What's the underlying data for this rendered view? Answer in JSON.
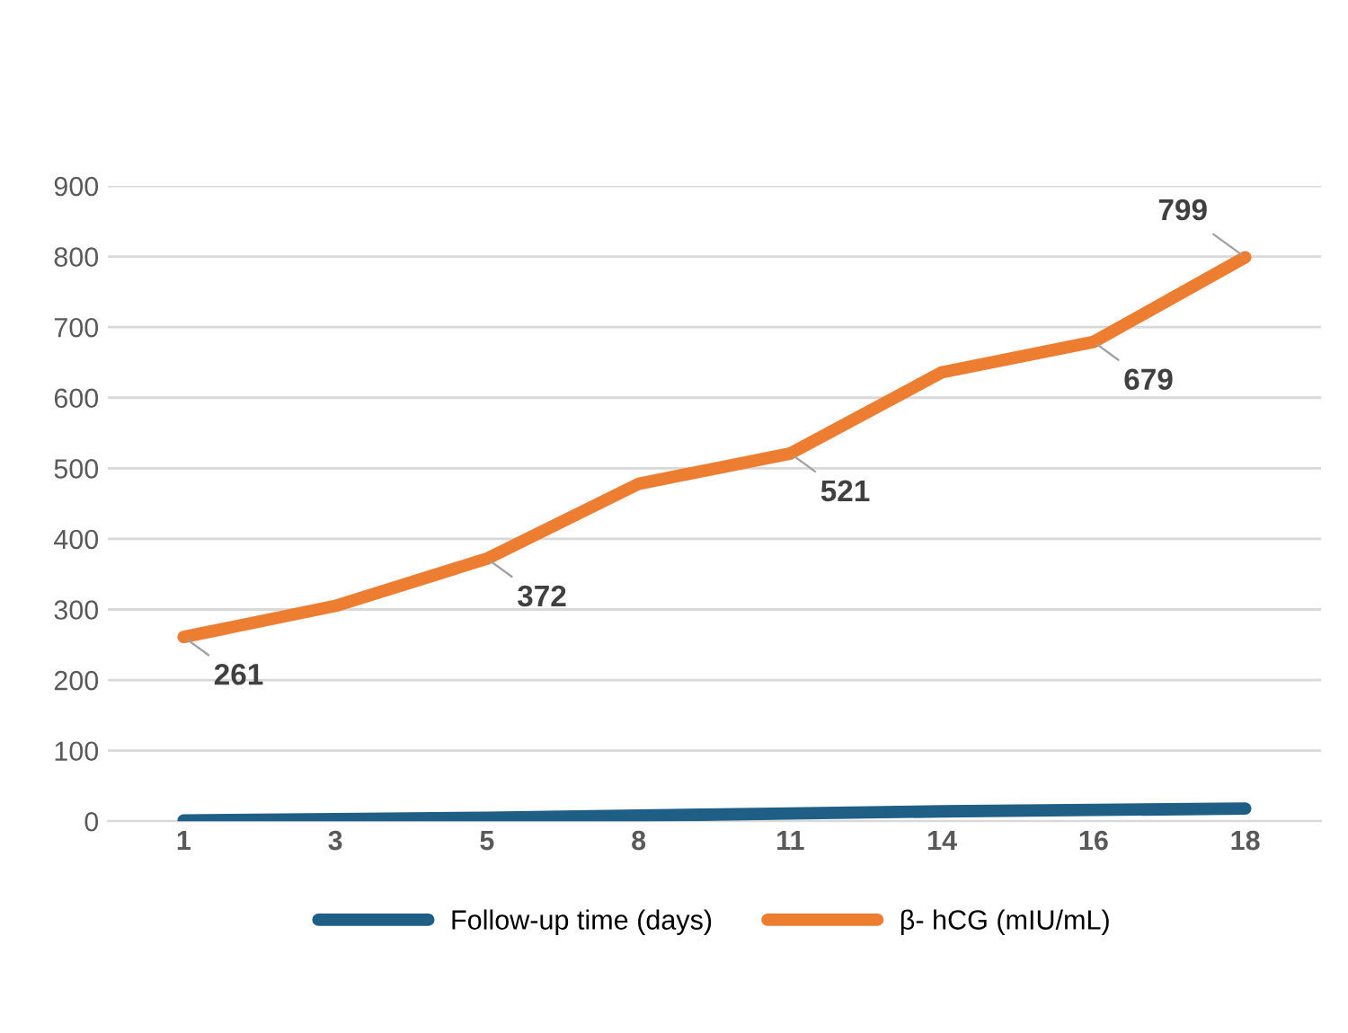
{
  "chart_data": {
    "type": "line",
    "categories": [
      "1",
      "3",
      "5",
      "8",
      "11",
      "14",
      "16",
      "18"
    ],
    "series": [
      {
        "name": "Follow-up time (days)",
        "color": "#1f5f86",
        "values": [
          1,
          3,
          5,
          8,
          11,
          14,
          16,
          18
        ]
      },
      {
        "name": "β- hCG (mIU/mL)",
        "color": "#ed7d31",
        "values": [
          261,
          305,
          372,
          478,
          521,
          636,
          679,
          799
        ],
        "value_labels": [
          "261",
          null,
          "372",
          null,
          "521",
          null,
          "679",
          "799"
        ]
      }
    ],
    "ylim": [
      0,
      900
    ],
    "yticks": [
      0,
      100,
      200,
      300,
      400,
      500,
      600,
      700,
      800,
      900
    ],
    "grid": "y",
    "legend": "bottom",
    "marker": "none",
    "line_style": "solid"
  }
}
